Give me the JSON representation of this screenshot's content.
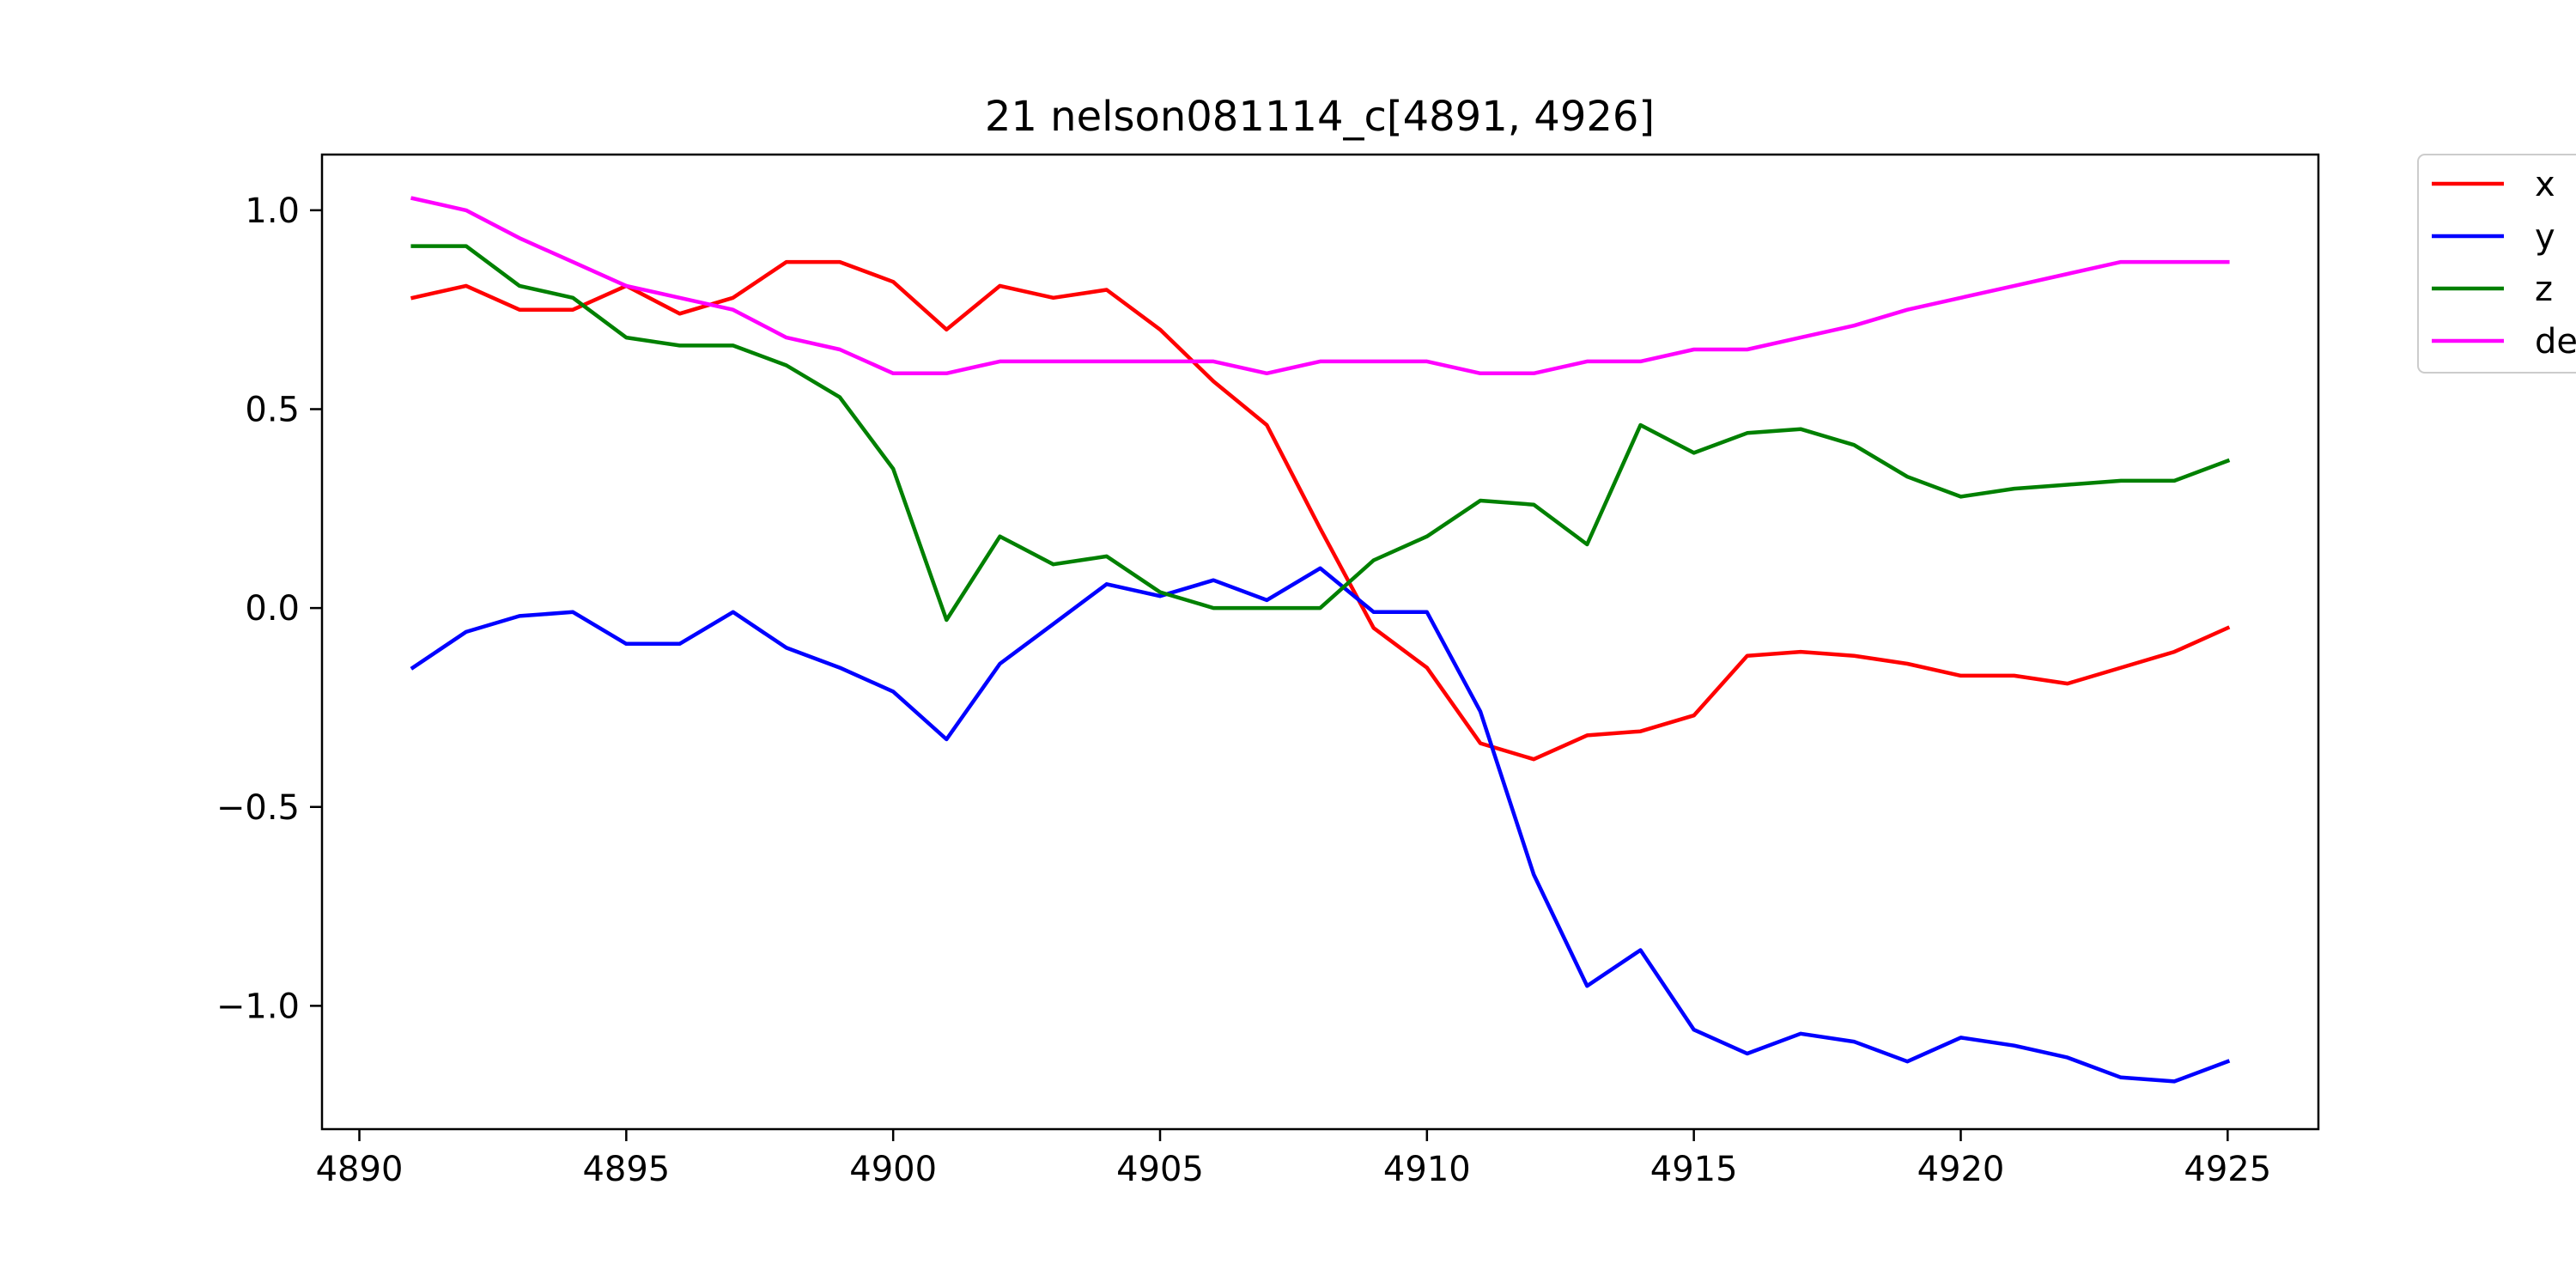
{
  "chart_data": {
    "type": "line",
    "title": "21 nelson081114_c[4891, 4926]",
    "xlabel": "",
    "ylabel": "",
    "xlim": [
      4889.3,
      4926.7
    ],
    "ylim": [
      -1.31,
      1.14
    ],
    "xticks": [
      4890,
      4895,
      4900,
      4905,
      4910,
      4915,
      4920,
      4925
    ],
    "xtick_labels": [
      "4890",
      "4895",
      "4900",
      "4905",
      "4910",
      "4915",
      "4920",
      "4925"
    ],
    "yticks": [
      1.0,
      0.5,
      0.0,
      -0.5,
      -1.0
    ],
    "ytick_labels": [
      "1.0",
      "0.5",
      "0.0",
      "−0.5",
      "−1.0"
    ],
    "grid": false,
    "legend_position": "outside-top-right",
    "x": [
      4891,
      4892,
      4893,
      4894,
      4895,
      4896,
      4897,
      4898,
      4899,
      4900,
      4901,
      4902,
      4903,
      4904,
      4905,
      4906,
      4907,
      4908,
      4909,
      4910,
      4911,
      4912,
      4913,
      4914,
      4915,
      4916,
      4917,
      4918,
      4919,
      4920,
      4921,
      4922,
      4923,
      4924,
      4925
    ],
    "series": [
      {
        "name": "x",
        "color": "#ff0000",
        "values": [
          0.78,
          0.81,
          0.75,
          0.75,
          0.81,
          0.74,
          0.78,
          0.87,
          0.87,
          0.82,
          0.7,
          0.81,
          0.78,
          0.8,
          0.7,
          0.57,
          0.46,
          0.2,
          -0.05,
          -0.15,
          -0.34,
          -0.38,
          -0.32,
          -0.31,
          -0.27,
          -0.12,
          -0.11,
          -0.12,
          -0.14,
          -0.17,
          -0.17,
          -0.19,
          -0.15,
          -0.11,
          -0.05
        ]
      },
      {
        "name": "y",
        "color": "#0000ff",
        "values": [
          -0.15,
          -0.06,
          -0.02,
          -0.01,
          -0.09,
          -0.09,
          -0.01,
          -0.1,
          -0.15,
          -0.21,
          -0.33,
          -0.14,
          -0.04,
          0.06,
          0.03,
          0.07,
          0.02,
          0.1,
          -0.01,
          -0.01,
          -0.26,
          -0.67,
          -0.95,
          -0.86,
          -1.06,
          -1.12,
          -1.07,
          -1.09,
          -1.14,
          -1.08,
          -1.1,
          -1.13,
          -1.18,
          -1.19,
          -1.14
        ]
      },
      {
        "name": "z",
        "color": "#008000",
        "values": [
          0.91,
          0.91,
          0.81,
          0.78,
          0.68,
          0.66,
          0.66,
          0.61,
          0.53,
          0.35,
          -0.03,
          0.18,
          0.11,
          0.13,
          0.04,
          0.0,
          0.0,
          0.0,
          0.12,
          0.18,
          0.27,
          0.26,
          0.16,
          0.46,
          0.39,
          0.44,
          0.45,
          0.41,
          0.33,
          0.28,
          0.3,
          0.31,
          0.32,
          0.32,
          0.37
        ]
      },
      {
        "name": "de",
        "color": "#ff00ff",
        "values": [
          1.03,
          1.0,
          0.93,
          0.87,
          0.81,
          0.78,
          0.75,
          0.68,
          0.65,
          0.59,
          0.59,
          0.62,
          0.62,
          0.62,
          0.62,
          0.62,
          0.59,
          0.62,
          0.62,
          0.62,
          0.59,
          0.59,
          0.62,
          0.62,
          0.65,
          0.65,
          0.68,
          0.71,
          0.75,
          0.78,
          0.81,
          0.84,
          0.87,
          0.87,
          0.87
        ]
      }
    ]
  }
}
